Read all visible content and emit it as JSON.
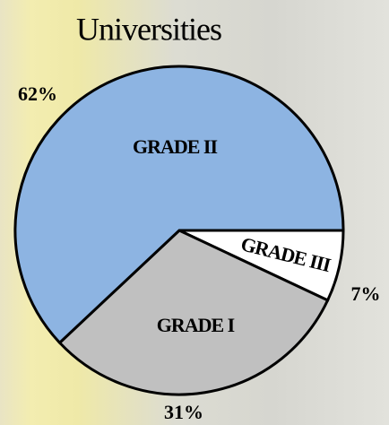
{
  "chart_data": {
    "type": "pie",
    "title": "Universities",
    "categories": [
      "GRADE III",
      "GRADE I",
      "GRADE II"
    ],
    "values": [
      7,
      31,
      62
    ],
    "value_labels": [
      "7%",
      "31%",
      "62%"
    ],
    "colors": [
      "#ffffff",
      "#c0c0c0",
      "#8db4e2"
    ]
  }
}
